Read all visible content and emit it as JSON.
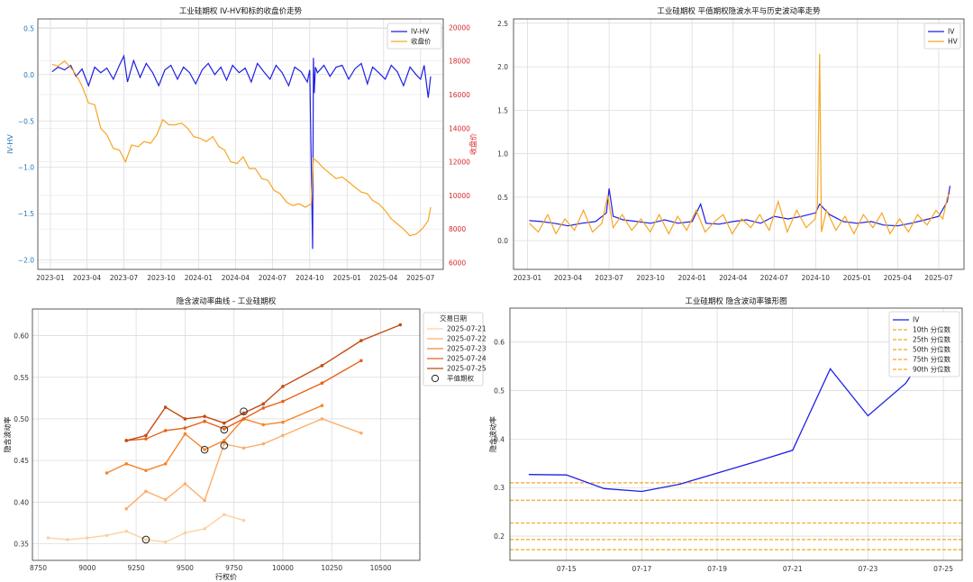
{
  "chart_data": [
    {
      "type": "line",
      "title": "工业硅期权 IV-HV和标的收盘价走势",
      "ylabel": "IV-HV",
      "ylabel_right": "收盘价",
      "xticks": [
        "2023-01",
        "2023-04",
        "2023-07",
        "2023-10",
        "2024-01",
        "2024-04",
        "2024-07",
        "2024-10",
        "2025-01",
        "2025-04",
        "2025-07"
      ],
      "ylim": [
        -2.1,
        0.6
      ],
      "yticks": [
        0.5,
        0.0,
        -0.5,
        -1.0,
        -1.5,
        -2.0
      ],
      "ytick_labels": [
        "0.5",
        "0.0",
        "−0.5",
        "−1.0",
        "−1.5",
        "−2.0"
      ],
      "ylim_right": [
        5600,
        20500
      ],
      "yticks_right": [
        20000,
        18000,
        16000,
        14000,
        12000,
        10000,
        8000,
        6000
      ],
      "legend": [
        "IV-HV",
        "收盘价"
      ],
      "legend_position": "upper right",
      "series": [
        {
          "name": "IV-HV",
          "axis": "left",
          "color": "#1f1fe6",
          "x": [
            "2023-01-05",
            "2023-01-20",
            "2023-02-05",
            "2023-02-20",
            "2023-03-05",
            "2023-03-20",
            "2023-04-05",
            "2023-04-20",
            "2023-05-05",
            "2023-05-20",
            "2023-06-05",
            "2023-06-20",
            "2023-07-01",
            "2023-07-10",
            "2023-07-25",
            "2023-08-10",
            "2023-08-25",
            "2023-09-10",
            "2023-09-25",
            "2023-10-10",
            "2023-10-25",
            "2023-11-10",
            "2023-11-25",
            "2023-12-10",
            "2023-12-25",
            "2024-01-10",
            "2024-01-25",
            "2024-02-10",
            "2024-02-25",
            "2024-03-10",
            "2024-03-25",
            "2024-04-10",
            "2024-04-25",
            "2024-05-10",
            "2024-05-25",
            "2024-06-10",
            "2024-06-25",
            "2024-07-10",
            "2024-07-25",
            "2024-08-10",
            "2024-08-25",
            "2024-09-10",
            "2024-09-25",
            "2024-10-01",
            "2024-10-08",
            "2024-10-10",
            "2024-10-12",
            "2024-10-15",
            "2024-10-20",
            "2024-11-05",
            "2024-11-20",
            "2024-12-05",
            "2024-12-20",
            "2025-01-05",
            "2025-01-20",
            "2025-02-05",
            "2025-02-20",
            "2025-03-05",
            "2025-03-20",
            "2025-04-05",
            "2025-04-20",
            "2025-05-05",
            "2025-05-20",
            "2025-06-05",
            "2025-06-20",
            "2025-07-01",
            "2025-07-10",
            "2025-07-20",
            "2025-07-26"
          ],
          "y": [
            0.03,
            0.08,
            0.05,
            0.1,
            -0.02,
            0.06,
            -0.12,
            0.08,
            0.02,
            0.07,
            -0.05,
            0.1,
            0.2,
            -0.08,
            0.15,
            -0.03,
            0.12,
            0.02,
            -0.12,
            0.05,
            0.1,
            -0.05,
            0.08,
            0.02,
            -0.1,
            0.05,
            0.12,
            0.0,
            0.08,
            -0.06,
            0.1,
            0.02,
            0.07,
            -0.08,
            0.12,
            0.03,
            -0.05,
            0.1,
            0.02,
            -0.12,
            0.08,
            0.03,
            -0.08,
            0.05,
            -1.88,
            0.18,
            -0.2,
            0.08,
            0.02,
            0.1,
            -0.02,
            0.08,
            0.1,
            -0.05,
            0.06,
            0.12,
            -0.1,
            0.08,
            0.02,
            -0.05,
            0.1,
            0.03,
            -0.12,
            0.08,
            0.0,
            -0.05,
            0.1,
            -0.25,
            -0.02
          ]
        },
        {
          "name": "收盘价",
          "axis": "right",
          "color": "#f5a623",
          "x": [
            "2023-01-05",
            "2023-01-20",
            "2023-02-05",
            "2023-02-20",
            "2023-03-05",
            "2023-03-20",
            "2023-04-05",
            "2023-04-20",
            "2023-05-05",
            "2023-05-20",
            "2023-06-05",
            "2023-06-20",
            "2023-07-05",
            "2023-07-20",
            "2023-08-05",
            "2023-08-20",
            "2023-09-05",
            "2023-09-20",
            "2023-10-05",
            "2023-10-20",
            "2023-11-05",
            "2023-11-20",
            "2023-12-05",
            "2023-12-20",
            "2024-01-05",
            "2024-01-20",
            "2024-02-05",
            "2024-02-20",
            "2024-03-05",
            "2024-03-20",
            "2024-04-05",
            "2024-04-20",
            "2024-05-05",
            "2024-05-20",
            "2024-06-05",
            "2024-06-20",
            "2024-07-05",
            "2024-07-20",
            "2024-08-05",
            "2024-08-20",
            "2024-09-05",
            "2024-09-20",
            "2024-10-05",
            "2024-10-10",
            "2024-10-20",
            "2024-11-05",
            "2024-11-20",
            "2024-12-05",
            "2024-12-20",
            "2025-01-05",
            "2025-01-20",
            "2025-02-05",
            "2025-02-20",
            "2025-03-05",
            "2025-03-20",
            "2025-04-05",
            "2025-04-20",
            "2025-05-05",
            "2025-05-20",
            "2025-06-05",
            "2025-06-20",
            "2025-07-05",
            "2025-07-20",
            "2025-07-26"
          ],
          "y": [
            17800,
            17700,
            18000,
            17600,
            17200,
            16500,
            15500,
            15400,
            14000,
            13600,
            12800,
            12700,
            12000,
            13000,
            12900,
            13200,
            13100,
            13600,
            14500,
            14200,
            14200,
            14300,
            14000,
            13500,
            13400,
            13200,
            13500,
            12900,
            12700,
            12000,
            11900,
            12300,
            11600,
            11600,
            11000,
            10900,
            10300,
            10100,
            9600,
            9400,
            9500,
            9300,
            9500,
            12200,
            12000,
            11600,
            11300,
            11000,
            11100,
            10800,
            10500,
            10200,
            10100,
            9700,
            9500,
            9100,
            8600,
            8300,
            8000,
            7600,
            7700,
            8000,
            8500,
            9300
          ]
        }
      ]
    },
    {
      "type": "line",
      "title": "工业硅期权 平值期权隐波水平与历史波动率走势",
      "xticks": [
        "2023-01",
        "2023-04",
        "2023-07",
        "2023-10",
        "2024-01",
        "2024-04",
        "2024-07",
        "2024-10",
        "2025-01",
        "2025-04",
        "2025-07"
      ],
      "ylim": [
        -0.33,
        2.55
      ],
      "yticks": [
        0.0,
        0.5,
        1.0,
        1.5,
        2.0,
        2.5
      ],
      "ytick_labels": [
        "0.0",
        "0.5",
        "1.0",
        "1.5",
        "2.0",
        "2.5"
      ],
      "legend": [
        "IV",
        "HV"
      ],
      "legend_position": "upper right",
      "series": [
        {
          "name": "IV",
          "color": "#1f1fe6",
          "x": [
            "2023-01-05",
            "2023-02-01",
            "2023-03-01",
            "2023-04-01",
            "2023-05-01",
            "2023-06-01",
            "2023-06-25",
            "2023-07-01",
            "2023-07-10",
            "2023-08-01",
            "2023-09-01",
            "2023-10-01",
            "2023-11-01",
            "2023-12-01",
            "2024-01-01",
            "2024-01-20",
            "2024-02-01",
            "2024-03-01",
            "2024-04-01",
            "2024-05-01",
            "2024-06-01",
            "2024-07-01",
            "2024-08-01",
            "2024-09-01",
            "2024-10-01",
            "2024-10-10",
            "2024-11-01",
            "2024-12-01",
            "2025-01-01",
            "2025-02-01",
            "2025-03-01",
            "2025-04-01",
            "2025-05-01",
            "2025-06-01",
            "2025-07-01",
            "2025-07-20",
            "2025-07-26"
          ],
          "y": [
            0.23,
            0.22,
            0.2,
            0.17,
            0.2,
            0.22,
            0.32,
            0.6,
            0.28,
            0.24,
            0.22,
            0.2,
            0.24,
            0.2,
            0.22,
            0.42,
            0.2,
            0.19,
            0.22,
            0.24,
            0.2,
            0.28,
            0.25,
            0.28,
            0.32,
            0.42,
            0.3,
            0.22,
            0.2,
            0.22,
            0.18,
            0.17,
            0.2,
            0.24,
            0.28,
            0.45,
            0.63
          ]
        },
        {
          "name": "HV",
          "color": "#f5a623",
          "x": [
            "2023-01-05",
            "2023-01-25",
            "2023-02-15",
            "2023-03-05",
            "2023-03-25",
            "2023-04-15",
            "2023-05-05",
            "2023-05-25",
            "2023-06-15",
            "2023-06-28",
            "2023-07-10",
            "2023-07-30",
            "2023-08-20",
            "2023-09-10",
            "2023-09-30",
            "2023-10-20",
            "2023-11-10",
            "2023-11-30",
            "2023-12-20",
            "2024-01-10",
            "2024-01-30",
            "2024-02-20",
            "2024-03-10",
            "2024-03-30",
            "2024-04-20",
            "2024-05-10",
            "2024-05-30",
            "2024-06-20",
            "2024-07-10",
            "2024-07-30",
            "2024-08-20",
            "2024-09-10",
            "2024-09-30",
            "2024-10-05",
            "2024-10-10",
            "2024-10-14",
            "2024-10-25",
            "2024-11-15",
            "2024-12-05",
            "2024-12-25",
            "2025-01-15",
            "2025-02-05",
            "2025-02-25",
            "2025-03-15",
            "2025-04-05",
            "2025-04-25",
            "2025-05-15",
            "2025-06-05",
            "2025-06-25",
            "2025-07-10",
            "2025-07-20",
            "2025-07-26"
          ],
          "y": [
            0.2,
            0.1,
            0.3,
            0.08,
            0.25,
            0.12,
            0.35,
            0.1,
            0.2,
            0.52,
            0.15,
            0.3,
            0.12,
            0.25,
            0.1,
            0.3,
            0.08,
            0.28,
            0.12,
            0.35,
            0.1,
            0.22,
            0.3,
            0.08,
            0.25,
            0.15,
            0.3,
            0.12,
            0.45,
            0.1,
            0.35,
            0.15,
            0.25,
            0.4,
            2.15,
            0.1,
            0.35,
            0.12,
            0.28,
            0.08,
            0.3,
            0.15,
            0.32,
            0.08,
            0.25,
            0.1,
            0.3,
            0.18,
            0.35,
            0.25,
            0.5,
            0.55
          ]
        }
      ]
    },
    {
      "type": "line",
      "title": "隐含波动率曲线 - 工业硅期权",
      "xlabel": "行权价",
      "ylabel": "隐含波动率",
      "xlim": [
        8720,
        10700
      ],
      "ylim": [
        0.33,
        0.632
      ],
      "xticks": [
        8750,
        9000,
        9250,
        9500,
        9750,
        10000,
        10250,
        10500
      ],
      "yticks": [
        0.35,
        0.4,
        0.45,
        0.5,
        0.55,
        0.6
      ],
      "ytick_labels": [
        "0.35",
        "0.40",
        "0.45",
        "0.50",
        "0.55",
        "0.60"
      ],
      "legend_title": "交易日期",
      "legend_position": "upper right",
      "atm_label": "平值期权",
      "series": [
        {
          "name": "2025-07-21",
          "color": "#fdd0a2",
          "x": [
            8800,
            8900,
            9000,
            9100,
            9200,
            9300,
            9400,
            9500,
            9600,
            9700,
            9800
          ],
          "y": [
            0.357,
            0.355,
            0.357,
            0.36,
            0.365,
            0.355,
            0.352,
            0.363,
            0.368,
            0.385,
            0.378
          ],
          "atm": {
            "x": 9300,
            "y": 0.355
          }
        },
        {
          "name": "2025-07-22",
          "color": "#fdae6b",
          "x": [
            9200,
            9300,
            9400,
            9500,
            9600,
            9700,
            9800,
            9900,
            10000,
            10200,
            10400
          ],
          "y": [
            0.392,
            0.413,
            0.403,
            0.422,
            0.402,
            0.47,
            0.465,
            0.47,
            0.48,
            0.5,
            0.483
          ],
          "atm": {
            "x": 9700,
            "y": 0.468
          }
        },
        {
          "name": "2025-07-23",
          "color": "#f5862a",
          "x": [
            9100,
            9200,
            9300,
            9400,
            9500,
            9600,
            9700,
            9800,
            9900,
            10000,
            10200
          ],
          "y": [
            0.435,
            0.446,
            0.438,
            0.446,
            0.482,
            0.463,
            0.474,
            0.5,
            0.493,
            0.496,
            0.516
          ],
          "atm": {
            "x": 9600,
            "y": 0.463
          }
        },
        {
          "name": "2025-07-24",
          "color": "#e8611a",
          "x": [
            9200,
            9300,
            9400,
            9500,
            9600,
            9700,
            9800,
            9900,
            10000,
            10200,
            10400
          ],
          "y": [
            0.474,
            0.476,
            0.486,
            0.489,
            0.497,
            0.488,
            0.5,
            0.513,
            0.521,
            0.543,
            0.57
          ],
          "atm": {
            "x": 9700,
            "y": 0.487
          }
        },
        {
          "name": "2025-07-25",
          "color": "#c44a10",
          "x": [
            9200,
            9300,
            9400,
            9500,
            9600,
            9700,
            9800,
            9900,
            10000,
            10200,
            10400,
            10600
          ],
          "y": [
            0.474,
            0.48,
            0.514,
            0.5,
            0.503,
            0.495,
            0.507,
            0.518,
            0.539,
            0.564,
            0.594,
            0.613
          ],
          "atm": {
            "x": 9800,
            "y": 0.509
          }
        }
      ]
    },
    {
      "type": "line",
      "title": "工业硅期权 隐含波动率锥形图",
      "ylabel": "隐含波动率",
      "x": [
        "07-14",
        "07-15",
        "07-16",
        "07-17",
        "07-18",
        "07-19",
        "07-20",
        "07-21",
        "07-22",
        "07-23",
        "07-24",
        "07-25"
      ],
      "xticks": [
        "07-15",
        "07-17",
        "07-19",
        "07-21",
        "07-23",
        "07-25"
      ],
      "ylim": [
        0.15,
        0.67
      ],
      "yticks": [
        0.2,
        0.3,
        0.4,
        0.5,
        0.6
      ],
      "ytick_labels": [
        "0.2",
        "0.3",
        "0.4",
        "0.5",
        "0.6"
      ],
      "legend_position": "upper right",
      "series": [
        {
          "name": "IV",
          "color": "#1f1fe6",
          "y": [
            0.327,
            0.326,
            0.298,
            0.292,
            0.307,
            0.33,
            0.353,
            0.377,
            0.545,
            0.448,
            0.515,
            0.633
          ]
        }
      ],
      "percentiles": [
        {
          "name": "10th 分位数",
          "value": 0.172
        },
        {
          "name": "25th 分位数",
          "value": 0.193
        },
        {
          "name": "50th 分位数",
          "value": 0.227
        },
        {
          "name": "75th 分位数",
          "value": 0.274
        },
        {
          "name": "90th 分位数",
          "value": 0.31
        }
      ],
      "percentile_color": "#f5a623"
    }
  ]
}
